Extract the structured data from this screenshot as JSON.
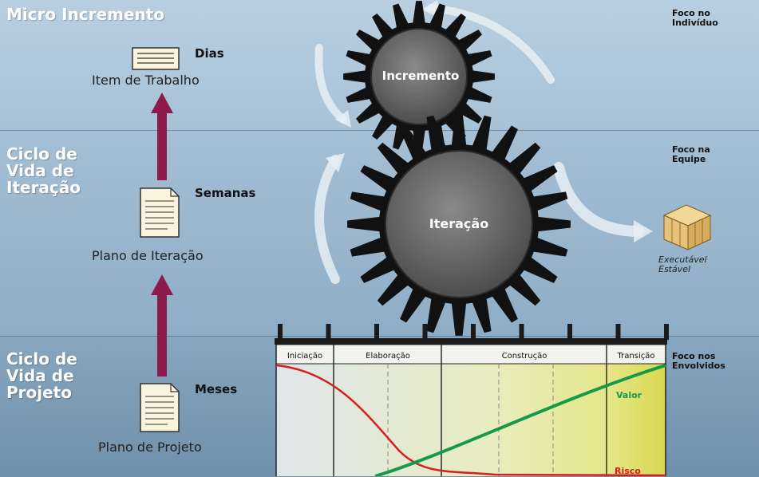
{
  "levels": [
    {
      "title": "Micro Incremento",
      "timebox": "Dias",
      "artifact": "Item de Trabalho",
      "focus": "Foco no\nIndivíduo"
    },
    {
      "title": "Ciclo de\nVida de\nIteração",
      "timebox": "Semanas",
      "artifact": "Plano de Iteração",
      "focus": "Foco na\nEquipe"
    },
    {
      "title": "Ciclo de\nVida de\nProjeto",
      "timebox": "Meses",
      "artifact": "Plano de Projeto",
      "focus": "Foco nos\nEnvolvidos"
    }
  ],
  "gears": {
    "small": "Incremento",
    "large": "Iteração"
  },
  "executable": {
    "label": "Executável\nEstável"
  },
  "phases": [
    "Iniciação",
    "Elaboração",
    "Construção",
    "Transição"
  ],
  "curves": {
    "value_label": "Valor",
    "risk_label": "Risco"
  },
  "colors": {
    "arrow": "#8c1a4a",
    "gear": "#6a6a6a",
    "value": "#169a4a",
    "risk": "#d42020"
  }
}
